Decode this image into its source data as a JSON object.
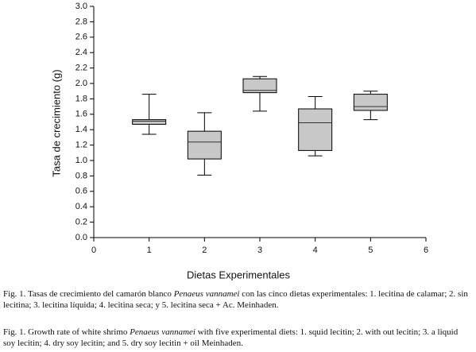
{
  "chart_data": {
    "type": "box",
    "xlabel": "Dietas Experimentales",
    "ylabel": "Tasa de crecimiento (g)",
    "xlim": [
      0,
      6
    ],
    "xticks": [
      0,
      1,
      2,
      3,
      4,
      5,
      6
    ],
    "ylim": [
      0,
      3
    ],
    "yticks": [
      {
        "value": 0,
        "label": "0.0"
      },
      {
        "value": 0.2,
        "label": "0.2"
      },
      {
        "value": 0.4,
        "label": "0.4"
      },
      {
        "value": 0.6,
        "label": "0.6"
      },
      {
        "value": 0.8,
        "label": "0.8"
      },
      {
        "value": 1,
        "label": "1.0"
      },
      {
        "value": 1.2,
        "label": "1.2"
      },
      {
        "value": 1.4,
        "label": "1.4"
      },
      {
        "value": 1.6,
        "label": "1.6"
      },
      {
        "value": 1.8,
        "label": "1.8"
      },
      {
        "value": 2,
        "label": "2.0"
      },
      {
        "value": 2.2,
        "label": "2.2"
      },
      {
        "value": 2.4,
        "label": "2.4"
      },
      {
        "value": 2.6,
        "label": "2.6"
      },
      {
        "value": 2.8,
        "label": "2.8"
      },
      {
        "value": 3,
        "label": "3.0"
      }
    ],
    "color": "#c8c8c8",
    "boxes": [
      {
        "x": 1,
        "min": 1.34,
        "q1": 1.47,
        "median": 1.51,
        "q3": 1.53,
        "max": 1.86
      },
      {
        "x": 2,
        "min": 0.81,
        "q1": 1.02,
        "median": 1.24,
        "q3": 1.38,
        "max": 1.62
      },
      {
        "x": 3,
        "min": 1.64,
        "q1": 1.88,
        "median": 1.91,
        "q3": 2.06,
        "max": 2.09
      },
      {
        "x": 4,
        "min": 1.06,
        "q1": 1.13,
        "median": 1.49,
        "q3": 1.67,
        "max": 1.83
      },
      {
        "x": 5,
        "min": 1.53,
        "q1": 1.65,
        "median": 1.7,
        "q3": 1.86,
        "max": 1.9
      }
    ]
  },
  "captions": [
    {
      "parts": [
        "Fig. 1. Tasas de crecimiento del camarón blanco ",
        "Penaeus vannamei",
        " con las cinco dietas experimentales: 1. lecitina de calamar; 2. sin lecitina; 3. lecitina líquida; 4. lecitina seca; y 5. lecitina seca + Ac. Meinhaden."
      ]
    },
    {
      "parts": [
        "Fig. 1. Growth rate of white shrimo ",
        "Penaeus vannamei",
        " with five experimental diets: 1. squid lecitin; 2. with out lecitin; 3. a liquid soy lecitin; 4. dry soy lecitin; and 5. dry soy lecitin + oil Meinhaden."
      ]
    }
  ]
}
